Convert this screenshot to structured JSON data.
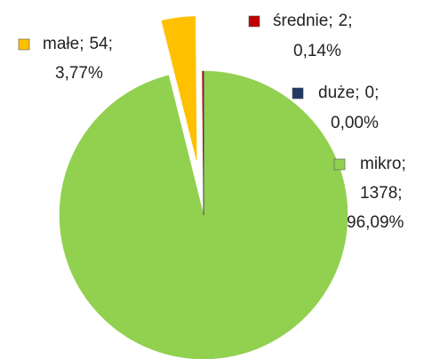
{
  "chart_data": {
    "type": "pie",
    "categories": [
      "mikro",
      "małe",
      "średnie",
      "duże"
    ],
    "values": [
      1378,
      54,
      2,
      0
    ],
    "shares": [
      96.09,
      3.77,
      0.14,
      0.0
    ],
    "share_labels": [
      "96,09%",
      "3,77%",
      "0,14%",
      "0,00%"
    ],
    "separator": ";",
    "colors": [
      "#92d050",
      "#ffc000",
      "#c00000",
      "#1f3864"
    ]
  }
}
